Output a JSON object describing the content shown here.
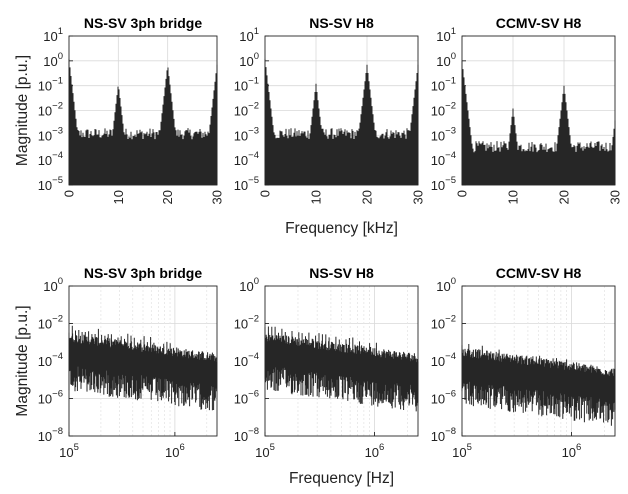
{
  "chart_data": [
    {
      "type": "line",
      "title": "NS-SV 3ph bridge",
      "ylabel": "Magnitude [p.u.]",
      "xlabel": "",
      "xscale": "linear",
      "yscale": "log",
      "xlim": [
        0,
        30
      ],
      "ylim": [
        1e-05,
        10
      ],
      "xticks": [
        0,
        10,
        20,
        30
      ],
      "xtick_labels": [
        "0",
        "10",
        "20",
        "30"
      ],
      "yticks_exp": [
        -5,
        -4,
        -3,
        -2,
        -1,
        0,
        1
      ],
      "grid": true,
      "floor": 0.001,
      "peaks": [
        {
          "x": 0,
          "y": 1.2
        },
        {
          "x": 10,
          "y": 0.12
        },
        {
          "x": 20,
          "y": 0.7
        },
        {
          "x": 30,
          "y": 0.7
        }
      ],
      "series_color": "#262626"
    },
    {
      "type": "line",
      "title": "NS-SV H8",
      "ylabel": "",
      "xlabel": "Frequency [kHz]",
      "xscale": "linear",
      "yscale": "log",
      "xlim": [
        0,
        30
      ],
      "ylim": [
        1e-05,
        10
      ],
      "xticks": [
        0,
        10,
        20,
        30
      ],
      "xtick_labels": [
        "0",
        "10",
        "20",
        "30"
      ],
      "yticks_exp": [
        -5,
        -4,
        -3,
        -2,
        -1,
        0,
        1
      ],
      "grid": true,
      "floor": 0.001,
      "peaks": [
        {
          "x": 0,
          "y": 1.2
        },
        {
          "x": 10,
          "y": 0.12
        },
        {
          "x": 20,
          "y": 0.7
        },
        {
          "x": 30,
          "y": 0.7
        }
      ],
      "series_color": "#262626"
    },
    {
      "type": "line",
      "title": "CCMV-SV H8",
      "ylabel": "",
      "xlabel": "",
      "xscale": "linear",
      "yscale": "log",
      "xlim": [
        0,
        30
      ],
      "ylim": [
        1e-05,
        10
      ],
      "xticks": [
        0,
        10,
        20,
        30
      ],
      "xtick_labels": [
        "0",
        "10",
        "20",
        "30"
      ],
      "yticks_exp": [
        -5,
        -4,
        -3,
        -2,
        -1,
        0,
        1
      ],
      "grid": true,
      "floor": 0.0003,
      "peaks": [
        {
          "x": 0,
          "y": 1.0
        },
        {
          "x": 10,
          "y": 0.012
        },
        {
          "x": 20,
          "y": 0.1
        },
        {
          "x": 30,
          "y": 0.004
        }
      ],
      "series_color": "#262626"
    },
    {
      "type": "line",
      "title": "NS-SV 3ph bridge",
      "ylabel": "Magnitude [p.u.]",
      "xlabel": "",
      "xscale": "log",
      "yscale": "log",
      "xlim": [
        100000,
        2500000
      ],
      "ylim": [
        1e-08,
        1
      ],
      "xticks_exp": [
        5,
        6
      ],
      "yticks_exp": [
        -8,
        -6,
        -4,
        -2,
        0
      ],
      "grid": true,
      "band_center": 0.0003,
      "spike_top": 0.01,
      "series_color": "#262626"
    },
    {
      "type": "line",
      "title": "NS-SV H8",
      "ylabel": "",
      "xlabel": "Frequency [Hz]",
      "xscale": "log",
      "yscale": "log",
      "xlim": [
        100000,
        2500000
      ],
      "ylim": [
        1e-08,
        1
      ],
      "xticks_exp": [
        5,
        6
      ],
      "yticks_exp": [
        -8,
        -6,
        -4,
        -2,
        0
      ],
      "grid": true,
      "band_center": 0.0003,
      "spike_top": 0.01,
      "series_color": "#262626"
    },
    {
      "type": "line",
      "title": "CCMV-SV H8",
      "ylabel": "",
      "xlabel": "",
      "xscale": "log",
      "yscale": "log",
      "xlim": [
        100000,
        2500000
      ],
      "ylim": [
        1e-08,
        1
      ],
      "xticks_exp": [
        5,
        6
      ],
      "yticks_exp": [
        -8,
        -6,
        -4,
        -2,
        0
      ],
      "grid": true,
      "band_center": 5e-05,
      "spike_top": 0.001,
      "series_color": "#262626"
    }
  ]
}
